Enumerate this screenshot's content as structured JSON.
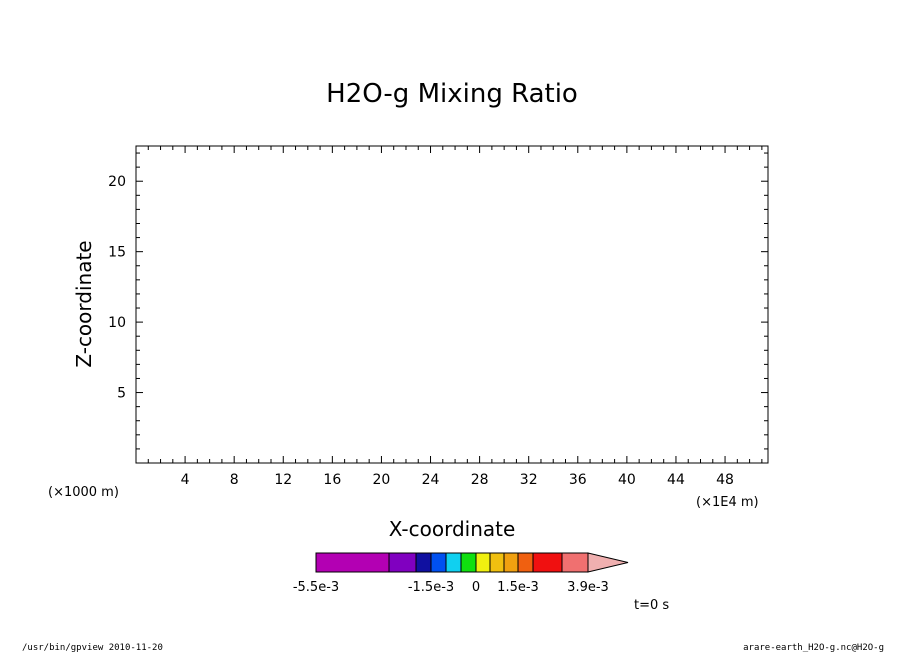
{
  "chart_data": {
    "type": "heatmap",
    "title": "H2O-g Mixing Ratio",
    "xlabel": "X-coordinate",
    "ylabel": "Z-coordinate",
    "x_unit": "(×1E4 m)",
    "y_unit": "(×1000 m)",
    "xlim": [
      0,
      51.5
    ],
    "ylim": [
      0,
      22.5
    ],
    "x_ticks": [
      4,
      8,
      12,
      16,
      20,
      24,
      28,
      32,
      36,
      40,
      44,
      48
    ],
    "x_tick_labels": [
      "4",
      "8",
      "12",
      "16",
      "20",
      "24",
      "28",
      "32",
      "36",
      "40",
      "44",
      "48"
    ],
    "y_ticks": [
      5,
      10,
      15,
      20
    ],
    "y_tick_labels": [
      "5",
      "10",
      "15",
      "20"
    ],
    "grid": false,
    "data": [],
    "colorbar": {
      "colors": [
        "#b300b3",
        "#8000c0",
        "#1010a0",
        "#0050f0",
        "#10d0f0",
        "#10e010",
        "#f0f010",
        "#f0c010",
        "#f0a010",
        "#f06010",
        "#f01010",
        "#f07070",
        "#f0b0b0"
      ],
      "tick_labels": [
        "-5.5e-3",
        "-1.5e-3",
        "0",
        "1.5e-3",
        "3.9e-3"
      ]
    },
    "time_label": "t=0 s"
  },
  "footer": {
    "left": "/usr/bin/gpview  2010-11-20",
    "right": "arare-earth_H2O-g.nc@H2O-g"
  }
}
